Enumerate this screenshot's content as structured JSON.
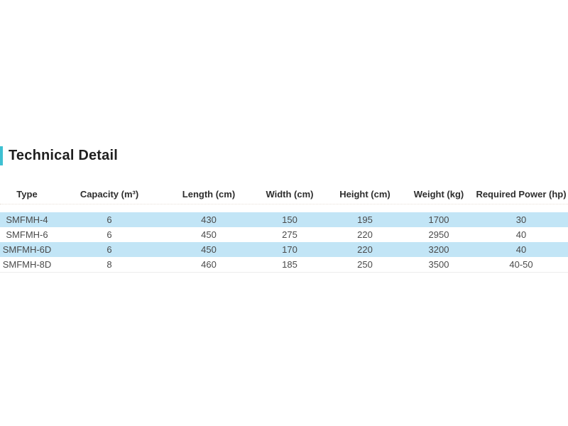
{
  "colors": {
    "accent": "#3ec0d2",
    "stripe": "#c2e5f6"
  },
  "title": "Technical Detail",
  "table": {
    "columns": [
      "Type",
      "Capacity (m³)",
      "Length (cm)",
      "Width (cm)",
      "Height (cm)",
      "Weight (kg)",
      "Required Power (hp)"
    ],
    "rows": [
      [
        "SMFMH-4",
        "6",
        "430",
        "150",
        "195",
        "1700",
        "30"
      ],
      [
        "SMFMH-6",
        "6",
        "450",
        "275",
        "220",
        "2950",
        "40"
      ],
      [
        "SMFMH-6D",
        "6",
        "450",
        "170",
        "220",
        "3200",
        "40"
      ],
      [
        "SMFMH-8D",
        "8",
        "460",
        "185",
        "250",
        "3500",
        "40-50"
      ]
    ]
  }
}
